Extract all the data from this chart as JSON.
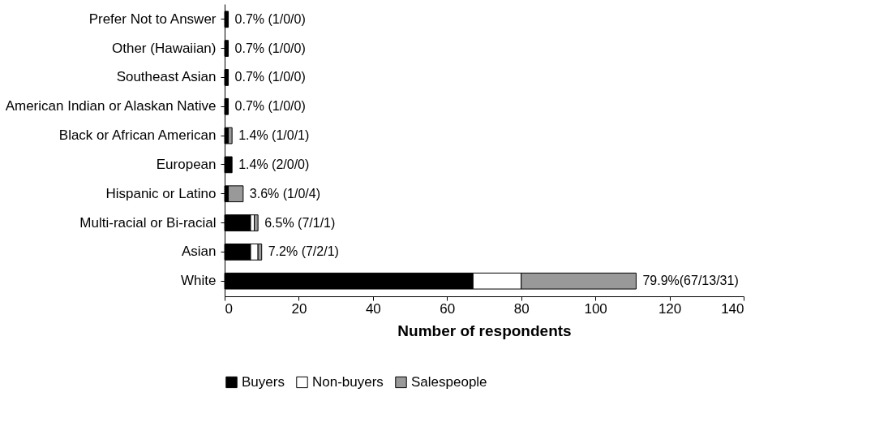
{
  "chart_data": {
    "type": "bar",
    "orientation": "horizontal",
    "stacked": true,
    "xlabel": "Number of respondents",
    "categories": [
      "Prefer Not to Answer",
      "Other (Hawaiian)",
      "Southeast Asian",
      "American Indian or Alaskan Native",
      "Black or African American",
      "European",
      "Hispanic or Latino",
      "Multi-racial or Bi-racial",
      "Asian",
      "White"
    ],
    "series": [
      {
        "name": "Buyers",
        "color": "#000000",
        "values": [
          1,
          1,
          1,
          1,
          1,
          2,
          1,
          7,
          7,
          67
        ]
      },
      {
        "name": "Non-buyers",
        "color": "#ffffff",
        "values": [
          0,
          0,
          0,
          0,
          0,
          0,
          0,
          1,
          2,
          13
        ]
      },
      {
        "name": "Salespeople",
        "color": "#999999",
        "values": [
          0,
          0,
          0,
          0,
          1,
          0,
          4,
          1,
          1,
          31
        ]
      }
    ],
    "totals": [
      "0.7% (1/0/0)",
      "0.7% (1/0/0)",
      "0.7% (1/0/0)",
      "0.7% (1/0/0)",
      "1.4% (1/0/1)",
      "1.4% (2/0/0)",
      "3.6% (1/0/4)",
      "6.5% (7/1/1)",
      "7.2% (7/2/1)",
      "79.9%(67/13/31)"
    ],
    "xlim": [
      0,
      140
    ],
    "xticks": [
      0,
      20,
      40,
      60,
      80,
      100,
      120,
      140
    ],
    "grid": false,
    "legend": "bottom"
  }
}
